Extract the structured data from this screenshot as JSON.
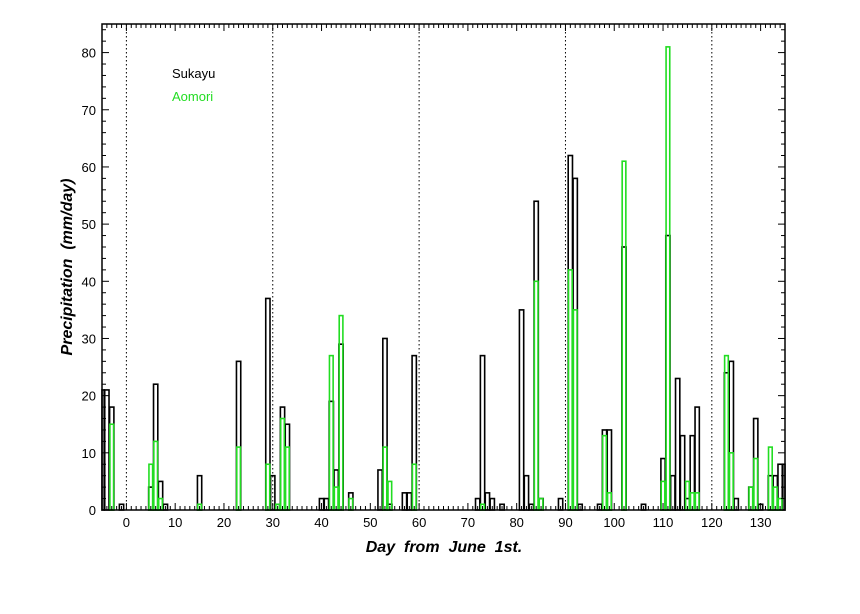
{
  "chart_data": {
    "type": "bar",
    "title": "",
    "xlabel": "Day  from  June  1st.",
    "ylabel": "Precipitation  (mm/day)",
    "xlim": [
      -5,
      135
    ],
    "ylim": [
      0,
      85
    ],
    "x_ticks": [
      0,
      10,
      20,
      30,
      40,
      50,
      60,
      70,
      80,
      90,
      100,
      110,
      120,
      130
    ],
    "y_ticks": [
      0,
      10,
      20,
      30,
      40,
      50,
      60,
      70,
      80
    ],
    "vertical_dotted_lines": [
      0,
      30,
      60,
      90,
      120
    ],
    "grid": false,
    "legend_position": "top-left",
    "series": [
      {
        "name": "Sukayu",
        "color": "#000000",
        "points": [
          [
            -5,
            21
          ],
          [
            -4,
            21
          ],
          [
            -3,
            18
          ],
          [
            -1,
            1
          ],
          [
            5,
            4
          ],
          [
            6,
            22
          ],
          [
            7,
            5
          ],
          [
            8,
            1
          ],
          [
            15,
            6
          ],
          [
            23,
            26
          ],
          [
            29,
            37
          ],
          [
            30,
            6
          ],
          [
            31,
            1
          ],
          [
            32,
            18
          ],
          [
            33,
            15
          ],
          [
            40,
            2
          ],
          [
            41,
            2
          ],
          [
            42,
            19
          ],
          [
            43,
            7
          ],
          [
            44,
            29
          ],
          [
            46,
            3
          ],
          [
            52,
            7
          ],
          [
            53,
            30
          ],
          [
            54,
            1
          ],
          [
            57,
            3
          ],
          [
            58,
            3
          ],
          [
            59,
            27
          ],
          [
            72,
            2
          ],
          [
            73,
            27
          ],
          [
            74,
            3
          ],
          [
            75,
            2
          ],
          [
            77,
            1
          ],
          [
            81,
            35
          ],
          [
            82,
            6
          ],
          [
            83,
            1
          ],
          [
            84,
            54
          ],
          [
            85,
            2
          ],
          [
            89,
            2
          ],
          [
            91,
            62
          ],
          [
            92,
            58
          ],
          [
            93,
            1
          ],
          [
            97,
            1
          ],
          [
            98,
            14
          ],
          [
            99,
            14
          ],
          [
            102,
            46
          ],
          [
            106,
            1
          ],
          [
            110,
            9
          ],
          [
            111,
            48
          ],
          [
            112,
            6
          ],
          [
            113,
            23
          ],
          [
            114,
            13
          ],
          [
            115,
            2
          ],
          [
            116,
            13
          ],
          [
            117,
            18
          ],
          [
            123,
            24
          ],
          [
            124,
            26
          ],
          [
            125,
            2
          ],
          [
            128,
            4
          ],
          [
            129,
            16
          ],
          [
            130,
            1
          ],
          [
            132,
            6
          ],
          [
            133,
            6
          ],
          [
            134,
            8
          ],
          [
            135,
            8
          ]
        ]
      },
      {
        "name": "Aomori",
        "color": "#22dd22",
        "points": [
          [
            -3,
            15
          ],
          [
            5,
            8
          ],
          [
            6,
            12
          ],
          [
            7,
            2
          ],
          [
            15,
            1
          ],
          [
            23,
            11
          ],
          [
            29,
            8
          ],
          [
            31,
            1
          ],
          [
            32,
            16
          ],
          [
            33,
            11
          ],
          [
            42,
            27
          ],
          [
            43,
            4
          ],
          [
            44,
            34
          ],
          [
            46,
            2
          ],
          [
            53,
            11
          ],
          [
            54,
            5
          ],
          [
            59,
            8
          ],
          [
            73,
            1
          ],
          [
            84,
            40
          ],
          [
            85,
            2
          ],
          [
            91,
            42
          ],
          [
            92,
            35
          ],
          [
            98,
            13
          ],
          [
            99,
            3
          ],
          [
            102,
            61
          ],
          [
            110,
            5
          ],
          [
            111,
            81
          ],
          [
            115,
            5
          ],
          [
            116,
            3
          ],
          [
            117,
            3
          ],
          [
            123,
            27
          ],
          [
            124,
            10
          ],
          [
            128,
            4
          ],
          [
            129,
            9
          ],
          [
            132,
            11
          ],
          [
            133,
            4
          ],
          [
            134,
            2
          ]
        ]
      }
    ]
  }
}
